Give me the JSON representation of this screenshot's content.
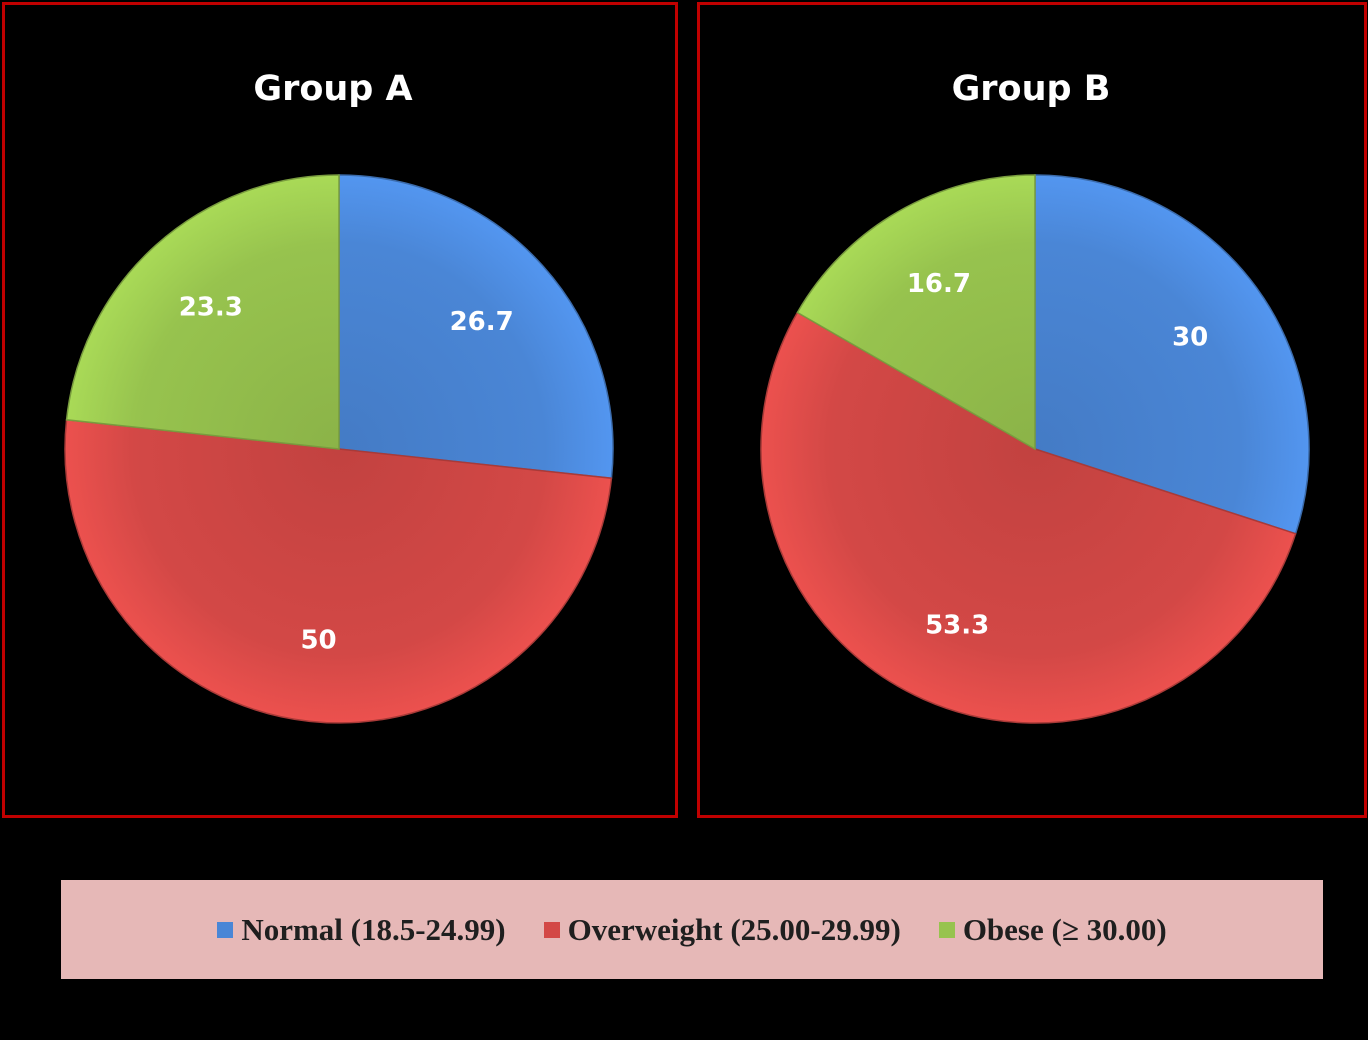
{
  "colors": {
    "normal": "#4a86d6",
    "overweight": "#d34846",
    "obese": "#97c34e",
    "panel_border": "#c00000",
    "legend_bg": "#e6b8b7"
  },
  "legend": {
    "items": [
      {
        "label": "Normal (18.5-24.99)",
        "color": "#4a86d6"
      },
      {
        "label": "Overweight (25.00-29.99)",
        "color": "#d34846"
      },
      {
        "label": "Obese (≥ 30.00)",
        "color": "#97c34e"
      }
    ]
  },
  "chart_data": [
    {
      "type": "pie",
      "title": "Group A",
      "categories": [
        "Normal (18.5-24.99)",
        "Overweight (25.00-29.99)",
        "Obese (≥ 30.00)"
      ],
      "values": [
        26.7,
        50,
        23.3
      ],
      "labels": [
        "26.7",
        "50",
        "23.3"
      ],
      "colors": [
        "#4a86d6",
        "#d34846",
        "#97c34e"
      ],
      "start": "12 o'clock, clockwise",
      "legend_position": "bottom"
    },
    {
      "type": "pie",
      "title": "Group B",
      "categories": [
        "Normal (18.5-24.99)",
        "Overweight (25.00-29.99)",
        "Obese (≥ 30.00)"
      ],
      "values": [
        30,
        53.3,
        16.7
      ],
      "labels": [
        "30",
        "53.3",
        "16.7"
      ],
      "colors": [
        "#4a86d6",
        "#d34846",
        "#97c34e"
      ],
      "start": "12 o'clock, clockwise",
      "legend_position": "bottom"
    }
  ]
}
